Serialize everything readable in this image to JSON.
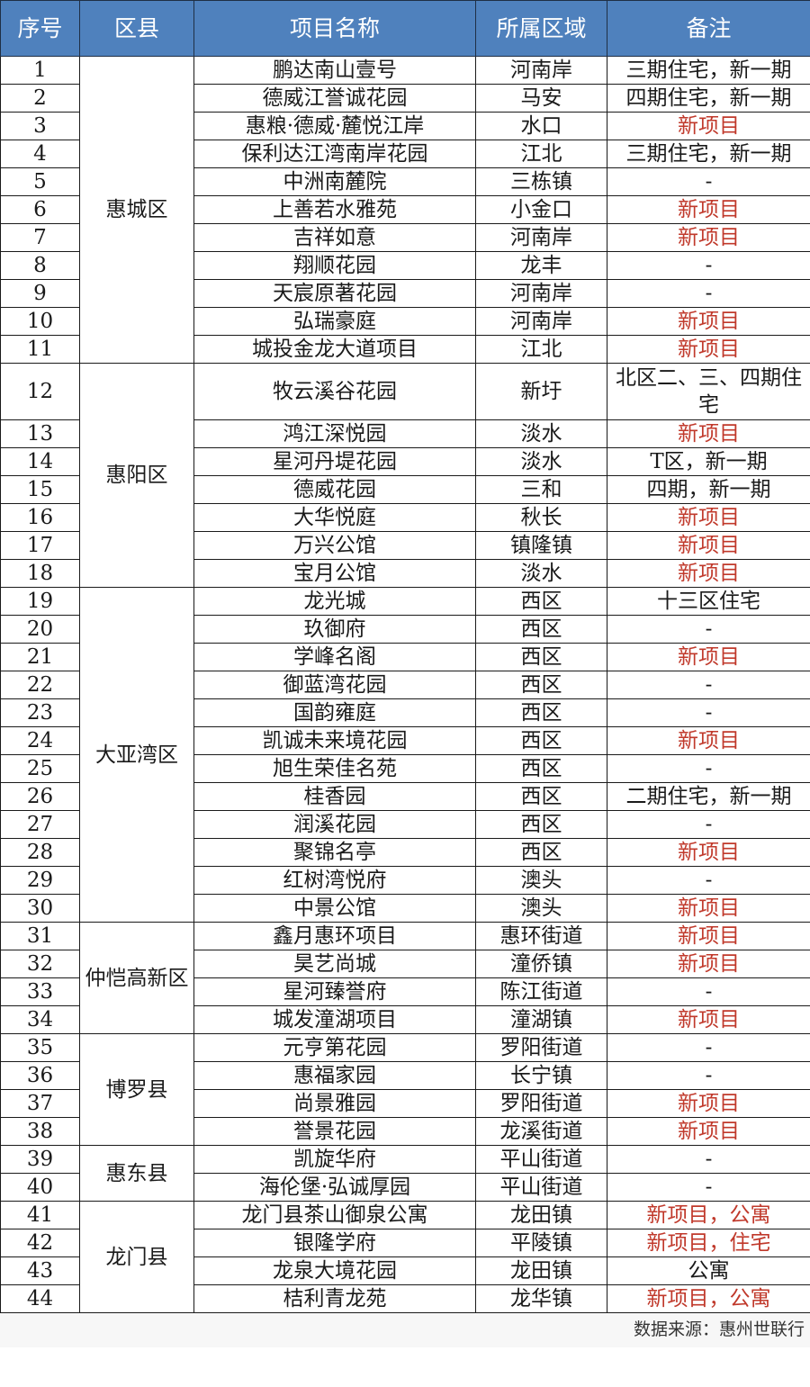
{
  "colors": {
    "header_bg": "#4f81bd",
    "highlight_text": "#c0392b"
  },
  "headers": [
    "序号",
    "区县",
    "项目名称",
    "所属区域",
    "备注"
  ],
  "districts": [
    {
      "name": "惠城区",
      "rows": [
        {
          "no": "1",
          "name": "鹏达南山壹号",
          "area": "河南岸",
          "note": "三期住宅，新一期",
          "highlight": false
        },
        {
          "no": "2",
          "name": "德威江誉诚花园",
          "area": "马安",
          "note": "四期住宅，新一期",
          "highlight": false
        },
        {
          "no": "3",
          "name": "惠粮·德威·麓悦江岸",
          "area": "水口",
          "note": "新项目",
          "highlight": true
        },
        {
          "no": "4",
          "name": "保利达江湾南岸花园",
          "area": "江北",
          "note": "三期住宅，新一期",
          "highlight": false
        },
        {
          "no": "5",
          "name": "中洲南麓院",
          "area": "三栋镇",
          "note": "-",
          "highlight": false
        },
        {
          "no": "6",
          "name": "上善若水雅苑",
          "area": "小金口",
          "note": "新项目",
          "highlight": true
        },
        {
          "no": "7",
          "name": "吉祥如意",
          "area": "河南岸",
          "note": "新项目",
          "highlight": true
        },
        {
          "no": "8",
          "name": "翔顺花园",
          "area": "龙丰",
          "note": "-",
          "highlight": false
        },
        {
          "no": "9",
          "name": "天宸原著花园",
          "area": "河南岸",
          "note": "-",
          "highlight": false
        },
        {
          "no": "10",
          "name": "弘瑞豪庭",
          "area": "河南岸",
          "note": "新项目",
          "highlight": true
        },
        {
          "no": "11",
          "name": "城投金龙大道项目",
          "area": "江北",
          "note": "新项目",
          "highlight": true
        }
      ]
    },
    {
      "name": "惠阳区",
      "rows": [
        {
          "no": "12",
          "name": "牧云溪谷花园",
          "area": "新圩",
          "note": "北区二、三、四期住宅",
          "highlight": false,
          "tall": true
        },
        {
          "no": "13",
          "name": "鸿江深悦园",
          "area": "淡水",
          "note": "新项目",
          "highlight": true
        },
        {
          "no": "14",
          "name": "星河丹堤花园",
          "area": "淡水",
          "note": "T区，新一期",
          "highlight": false
        },
        {
          "no": "15",
          "name": "德威花园",
          "area": "三和",
          "note": "四期，新一期",
          "highlight": false
        },
        {
          "no": "16",
          "name": "大华悦庭",
          "area": "秋长",
          "note": "新项目",
          "highlight": true
        },
        {
          "no": "17",
          "name": "万兴公馆",
          "area": "镇隆镇",
          "note": "新项目",
          "highlight": true
        },
        {
          "no": "18",
          "name": "宝月公馆",
          "area": "淡水",
          "note": "新项目",
          "highlight": true
        }
      ]
    },
    {
      "name": "大亚湾区",
      "rows": [
        {
          "no": "19",
          "name": "龙光城",
          "area": "西区",
          "note": "十三区住宅",
          "highlight": false
        },
        {
          "no": "20",
          "name": "玖御府",
          "area": "西区",
          "note": "-",
          "highlight": false
        },
        {
          "no": "21",
          "name": "学峰名阁",
          "area": "西区",
          "note": "新项目",
          "highlight": true
        },
        {
          "no": "22",
          "name": "御蓝湾花园",
          "area": "西区",
          "note": "-",
          "highlight": false
        },
        {
          "no": "23",
          "name": "国韵雍庭",
          "area": "西区",
          "note": "-",
          "highlight": false
        },
        {
          "no": "24",
          "name": "凯诚未来境花园",
          "area": "西区",
          "note": "新项目",
          "highlight": true
        },
        {
          "no": "25",
          "name": "旭生荣佳名苑",
          "area": "西区",
          "note": "-",
          "highlight": false
        },
        {
          "no": "26",
          "name": "桂香园",
          "area": "西区",
          "note": "二期住宅，新一期",
          "highlight": false
        },
        {
          "no": "27",
          "name": "润溪花园",
          "area": "西区",
          "note": "-",
          "highlight": false
        },
        {
          "no": "28",
          "name": "聚锦名亭",
          "area": "西区",
          "note": "新项目",
          "highlight": true
        },
        {
          "no": "29",
          "name": "红树湾悦府",
          "area": "澳头",
          "note": "-",
          "highlight": false
        },
        {
          "no": "30",
          "name": "中景公馆",
          "area": "澳头",
          "note": "新项目",
          "highlight": true
        }
      ]
    },
    {
      "name": "仲恺高新区",
      "rows": [
        {
          "no": "31",
          "name": "鑫月惠环项目",
          "area": "惠环街道",
          "note": "新项目",
          "highlight": true
        },
        {
          "no": "32",
          "name": "昊艺尚城",
          "area": "潼侨镇",
          "note": "新项目",
          "highlight": true
        },
        {
          "no": "33",
          "name": "星河臻誉府",
          "area": "陈江街道",
          "note": "-",
          "highlight": false
        },
        {
          "no": "34",
          "name": "城发潼湖项目",
          "area": "潼湖镇",
          "note": "新项目",
          "highlight": true
        }
      ]
    },
    {
      "name": "博罗县",
      "rows": [
        {
          "no": "35",
          "name": "元亨第花园",
          "area": "罗阳街道",
          "note": "-",
          "highlight": false
        },
        {
          "no": "36",
          "name": "惠福家园",
          "area": "长宁镇",
          "note": "-",
          "highlight": false
        },
        {
          "no": "37",
          "name": "尚景雅园",
          "area": "罗阳街道",
          "note": "新项目",
          "highlight": true
        },
        {
          "no": "38",
          "name": "誉景花园",
          "area": "龙溪街道",
          "note": "新项目",
          "highlight": true
        }
      ]
    },
    {
      "name": "惠东县",
      "rows": [
        {
          "no": "39",
          "name": "凯旋华府",
          "area": "平山街道",
          "note": "-",
          "highlight": false
        },
        {
          "no": "40",
          "name": "海伦堡·弘诚厚园",
          "area": "平山街道",
          "note": "-",
          "highlight": false
        }
      ]
    },
    {
      "name": "龙门县",
      "rows": [
        {
          "no": "41",
          "name": "龙门县茶山御泉公寓",
          "area": "龙田镇",
          "note": "新项目，公寓",
          "highlight": true
        },
        {
          "no": "42",
          "name": "银隆学府",
          "area": "平陵镇",
          "note": "新项目，住宅",
          "highlight": true
        },
        {
          "no": "43",
          "name": "龙泉大境花园",
          "area": "龙田镇",
          "note": "公寓",
          "highlight": false
        },
        {
          "no": "44",
          "name": "桔利青龙苑",
          "area": "龙华镇",
          "note": "新项目，公寓",
          "highlight": true
        }
      ]
    }
  ],
  "footer": {
    "source": "数据来源：惠州世联行"
  }
}
